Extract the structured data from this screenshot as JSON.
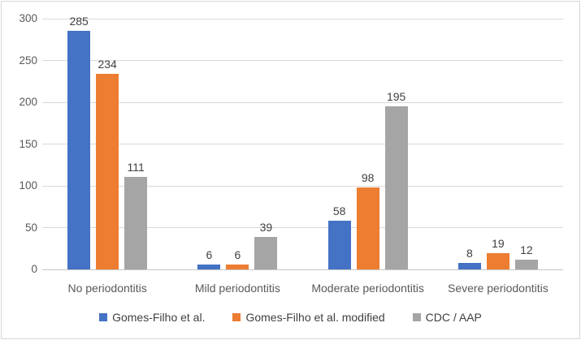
{
  "chart_data": {
    "type": "bar",
    "title": "",
    "xlabel": "",
    "ylabel": "",
    "categories": [
      "No periodontitis",
      "Mild periodontitis",
      "Moderate periodontitis",
      "Severe periodontitis"
    ],
    "series": [
      {
        "name": "Gomes-Filho et al.",
        "color": "#4472C4",
        "values": [
          285,
          6,
          58,
          8
        ]
      },
      {
        "name": "Gomes-Filho et al. modified",
        "color": "#ED7D31",
        "values": [
          234,
          6,
          98,
          19
        ]
      },
      {
        "name": "CDC / AAP",
        "color": "#A5A5A5",
        "values": [
          111,
          39,
          195,
          12
        ]
      }
    ],
    "ylim": [
      0,
      300
    ],
    "yticks": [
      0,
      50,
      100,
      150,
      200,
      250,
      300
    ],
    "grid": true,
    "data_labels": true,
    "legend_position": "bottom"
  },
  "colors": {
    "gridline": "#D9D9D9",
    "axis_line": "#C6C6C6",
    "axis_text": "#595959",
    "data_label_text": "#404040",
    "chart_border": "#D7D7D7",
    "background": "#FFFFFF"
  }
}
